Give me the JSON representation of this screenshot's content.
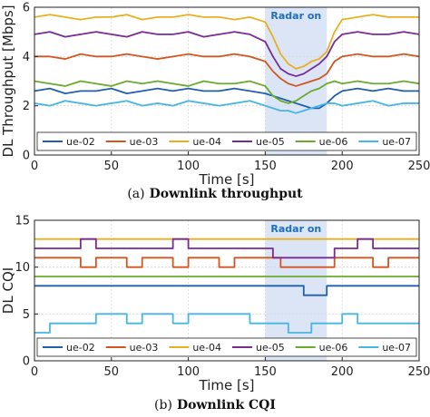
{
  "colors": {
    "ue-02": "#1f5fae",
    "ue-03": "#d2561f",
    "ue-04": "#e8b020",
    "ue-05": "#7a2b93",
    "ue-06": "#6aaa2c",
    "ue-07": "#48b6e2",
    "radar_band": "#cfdcf2",
    "radar_text": "#1f6fbf"
  },
  "chart_data": [
    {
      "type": "line",
      "caption_tag": "(a)",
      "caption": "Downlink throughput",
      "xlabel": "Time [s]",
      "ylabel": "DL Throughput [Mbps]",
      "xlim": [
        0,
        250
      ],
      "ylim": [
        0,
        6
      ],
      "xticks": [
        0,
        50,
        100,
        150,
        200,
        250
      ],
      "yticks": [
        0,
        2,
        4,
        6
      ],
      "grid": true,
      "legend_position": "bottom",
      "annotation": {
        "text": "Radar on",
        "x_range": [
          150,
          190
        ]
      },
      "x": [
        0,
        10,
        20,
        30,
        40,
        50,
        60,
        70,
        80,
        90,
        100,
        110,
        120,
        130,
        140,
        150,
        155,
        160,
        165,
        170,
        175,
        180,
        185,
        190,
        195,
        200,
        210,
        220,
        230,
        240,
        250
      ],
      "series": [
        {
          "name": "ue-02",
          "values": [
            2.6,
            2.7,
            2.5,
            2.6,
            2.6,
            2.7,
            2.5,
            2.6,
            2.7,
            2.6,
            2.7,
            2.6,
            2.6,
            2.7,
            2.6,
            2.5,
            2.4,
            2.3,
            2.2,
            2.1,
            2.0,
            1.9,
            1.9,
            2.1,
            2.4,
            2.6,
            2.7,
            2.6,
            2.7,
            2.6,
            2.6
          ]
        },
        {
          "name": "ue-03",
          "values": [
            4.0,
            4.0,
            3.9,
            4.1,
            4.0,
            4.0,
            4.1,
            4.0,
            3.9,
            4.0,
            4.1,
            4.0,
            4.0,
            4.1,
            4.0,
            3.8,
            3.4,
            3.1,
            2.9,
            2.8,
            2.9,
            3.0,
            3.1,
            3.3,
            3.8,
            4.0,
            4.1,
            4.0,
            4.0,
            4.1,
            4.0
          ]
        },
        {
          "name": "ue-04",
          "values": [
            5.6,
            5.7,
            5.6,
            5.5,
            5.6,
            5.6,
            5.7,
            5.5,
            5.6,
            5.6,
            5.7,
            5.6,
            5.6,
            5.5,
            5.6,
            5.4,
            4.8,
            4.1,
            3.7,
            3.5,
            3.6,
            3.8,
            3.9,
            4.2,
            5.0,
            5.5,
            5.6,
            5.7,
            5.6,
            5.6,
            5.6
          ]
        },
        {
          "name": "ue-05",
          "values": [
            4.9,
            5.0,
            4.8,
            4.9,
            5.0,
            4.9,
            4.8,
            5.0,
            4.9,
            4.9,
            5.0,
            4.8,
            4.9,
            5.0,
            4.9,
            4.6,
            4.0,
            3.5,
            3.3,
            3.2,
            3.3,
            3.5,
            3.7,
            4.0,
            4.6,
            4.9,
            5.0,
            4.9,
            4.9,
            5.0,
            4.9
          ]
        },
        {
          "name": "ue-06",
          "values": [
            3.0,
            2.9,
            2.8,
            3.0,
            2.9,
            2.8,
            3.0,
            2.9,
            3.0,
            2.9,
            2.8,
            3.0,
            2.9,
            2.9,
            3.0,
            2.8,
            2.4,
            2.2,
            2.1,
            2.2,
            2.4,
            2.6,
            2.7,
            2.9,
            3.0,
            2.9,
            3.0,
            2.9,
            2.9,
            3.0,
            2.9
          ]
        },
        {
          "name": "ue-07",
          "values": [
            2.1,
            2.0,
            2.2,
            2.1,
            2.0,
            2.1,
            2.2,
            2.0,
            2.1,
            2.0,
            2.2,
            2.1,
            2.0,
            2.1,
            2.2,
            2.0,
            1.9,
            1.8,
            1.8,
            1.7,
            1.8,
            1.9,
            2.0,
            2.1,
            2.1,
            2.0,
            2.1,
            2.2,
            2.0,
            2.1,
            2.1
          ]
        }
      ]
    },
    {
      "type": "line",
      "caption_tag": "(b)",
      "caption": "Downlink CQI",
      "xlabel": "Time [s]",
      "ylabel": "DL CQI",
      "xlim": [
        0,
        250
      ],
      "ylim": [
        0,
        15
      ],
      "xticks": [
        0,
        50,
        100,
        150,
        200,
        250
      ],
      "yticks": [
        0,
        5,
        10,
        15
      ],
      "grid": true,
      "legend_position": "bottom",
      "annotation": {
        "text": "Radar on",
        "x_range": [
          150,
          190
        ]
      },
      "x": [
        0,
        10,
        20,
        30,
        40,
        50,
        60,
        70,
        80,
        90,
        100,
        110,
        120,
        130,
        140,
        150,
        155,
        160,
        165,
        170,
        175,
        180,
        185,
        190,
        195,
        200,
        210,
        220,
        230,
        240,
        250
      ],
      "series": [
        {
          "name": "ue-02",
          "values": [
            8,
            8,
            8,
            8,
            8,
            8,
            8,
            8,
            8,
            8,
            8,
            8,
            8,
            8,
            8,
            8,
            8,
            8,
            8,
            8,
            7,
            7,
            7,
            8,
            8,
            8,
            8,
            8,
            8,
            8,
            8
          ]
        },
        {
          "name": "ue-03",
          "values": [
            11,
            11,
            11,
            10,
            11,
            11,
            10,
            11,
            11,
            10,
            11,
            11,
            10,
            11,
            11,
            11,
            11,
            10,
            10,
            10,
            10,
            10,
            10,
            10,
            11,
            11,
            11,
            10,
            11,
            11,
            11
          ]
        },
        {
          "name": "ue-04",
          "values": [
            13,
            13,
            13,
            13,
            13,
            13,
            13,
            13,
            13,
            13,
            13,
            13,
            13,
            13,
            13,
            13,
            13,
            13,
            13,
            13,
            13,
            13,
            13,
            13,
            13,
            13,
            13,
            13,
            13,
            13,
            13
          ]
        },
        {
          "name": "ue-05",
          "values": [
            12,
            12,
            12,
            13,
            12,
            12,
            12,
            12,
            12,
            13,
            12,
            12,
            12,
            12,
            12,
            12,
            11,
            11,
            11,
            11,
            11,
            11,
            11,
            11,
            12,
            12,
            13,
            12,
            12,
            12,
            12
          ]
        },
        {
          "name": "ue-06",
          "values": [
            9,
            9,
            9,
            9,
            9,
            9,
            9,
            9,
            9,
            9,
            9,
            9,
            9,
            9,
            9,
            9,
            9,
            9,
            9,
            9,
            9,
            9,
            9,
            9,
            9,
            9,
            9,
            9,
            9,
            9,
            9
          ]
        },
        {
          "name": "ue-07",
          "values": [
            3,
            4,
            4,
            4,
            5,
            5,
            4,
            5,
            5,
            4,
            5,
            5,
            5,
            5,
            4,
            4,
            4,
            4,
            3,
            3,
            3,
            4,
            4,
            4,
            4,
            5,
            4,
            4,
            4,
            4,
            4
          ]
        }
      ]
    }
  ]
}
